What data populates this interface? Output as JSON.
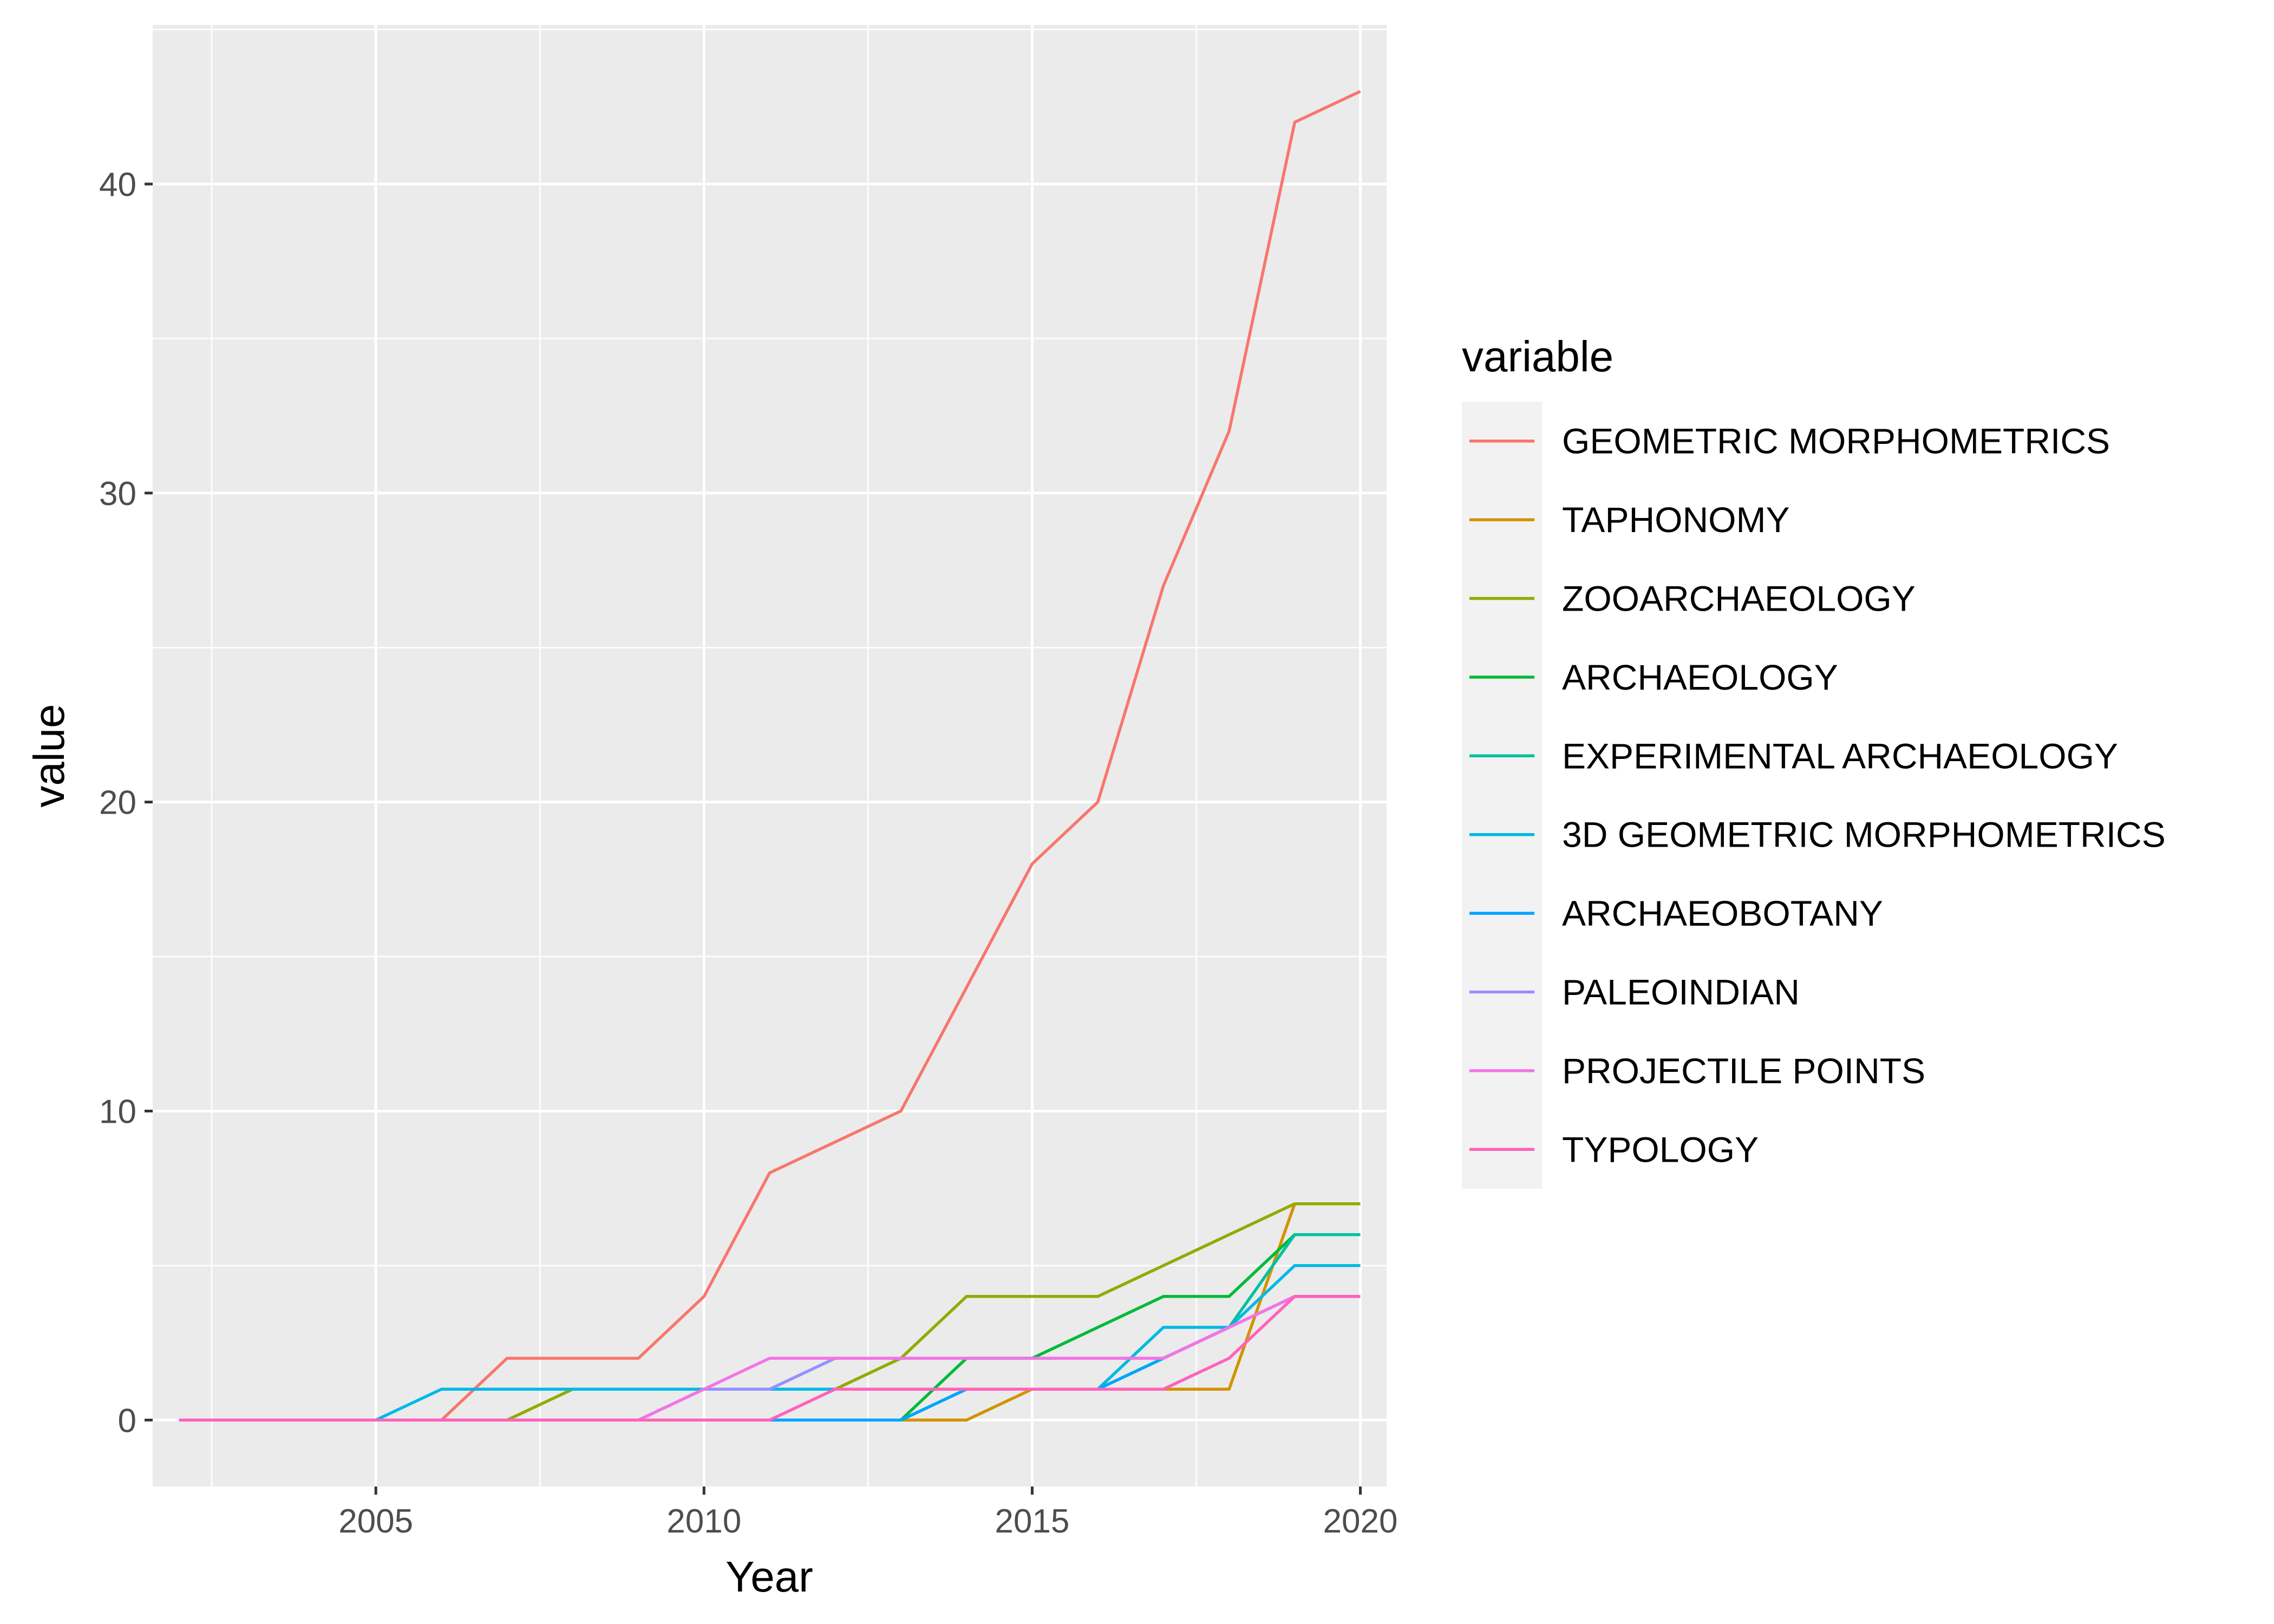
{
  "chart_data": {
    "type": "line",
    "title": "",
    "xlabel": "Year",
    "ylabel": "value",
    "xlim": [
      2001.6,
      2020.4
    ],
    "ylim": [
      -2.15,
      45.15
    ],
    "x_ticks": [
      2005,
      2010,
      2015,
      2020
    ],
    "y_ticks": [
      0,
      10,
      20,
      30,
      40
    ],
    "grid": true,
    "legend": {
      "title": "variable",
      "position": "right"
    },
    "x": [
      2002,
      2003,
      2004,
      2005,
      2006,
      2007,
      2008,
      2009,
      2010,
      2011,
      2012,
      2013,
      2014,
      2015,
      2016,
      2017,
      2018,
      2019,
      2020
    ],
    "series": [
      {
        "name": "GEOMETRIC MORPHOMETRICS",
        "color": "#F8766D",
        "values": [
          0,
          0,
          0,
          0,
          0,
          2,
          2,
          2,
          4,
          8,
          9,
          10,
          14,
          18,
          20,
          27,
          32,
          42,
          43
        ]
      },
      {
        "name": "TAPHONOMY",
        "color": "#D39200",
        "values": [
          0,
          0,
          0,
          0,
          0,
          0,
          0,
          0,
          0,
          0,
          0,
          0,
          0,
          1,
          1,
          1,
          1,
          7,
          7
        ]
      },
      {
        "name": "ZOOARCHAEOLOGY",
        "color": "#93AA00",
        "values": [
          0,
          0,
          0,
          0,
          0,
          0,
          1,
          1,
          1,
          1,
          1,
          2,
          4,
          4,
          4,
          5,
          6,
          7,
          7
        ]
      },
      {
        "name": "ARCHAEOLOGY",
        "color": "#00BA38",
        "values": [
          0,
          0,
          0,
          0,
          0,
          0,
          0,
          0,
          0,
          0,
          0,
          0,
          2,
          2,
          3,
          4,
          4,
          6,
          6
        ]
      },
      {
        "name": "EXPERIMENTAL ARCHAEOLOGY",
        "color": "#00C19F",
        "values": [
          0,
          0,
          0,
          0,
          0,
          0,
          0,
          0,
          0,
          0,
          0,
          0,
          1,
          1,
          1,
          2,
          3,
          6,
          6
        ]
      },
      {
        "name": "3D GEOMETRIC MORPHOMETRICS",
        "color": "#00B9E3",
        "values": [
          0,
          0,
          0,
          0,
          1,
          1,
          1,
          1,
          1,
          1,
          1,
          1,
          1,
          1,
          1,
          3,
          3,
          5,
          5
        ]
      },
      {
        "name": "ARCHAEOBOTANY",
        "color": "#00A5FF",
        "values": [
          0,
          0,
          0,
          0,
          0,
          0,
          0,
          0,
          0,
          0,
          0,
          0,
          1,
          1,
          1,
          2,
          3,
          4,
          4
        ]
      },
      {
        "name": "PALEOINDIAN",
        "color": "#9590FF",
        "values": [
          0,
          0,
          0,
          0,
          0,
          0,
          0,
          0,
          1,
          1,
          2,
          2,
          2,
          2,
          2,
          2,
          3,
          4,
          4
        ]
      },
      {
        "name": "PROJECTILE POINTS",
        "color": "#F374E5",
        "values": [
          0,
          0,
          0,
          0,
          0,
          0,
          0,
          0,
          1,
          2,
          2,
          2,
          2,
          2,
          2,
          2,
          3,
          4,
          4
        ]
      },
      {
        "name": "TYPOLOGY",
        "color": "#FF62BC",
        "values": [
          0,
          0,
          0,
          0,
          0,
          0,
          0,
          0,
          0,
          0,
          1,
          1,
          1,
          1,
          1,
          1,
          2,
          4,
          4
        ]
      }
    ]
  }
}
